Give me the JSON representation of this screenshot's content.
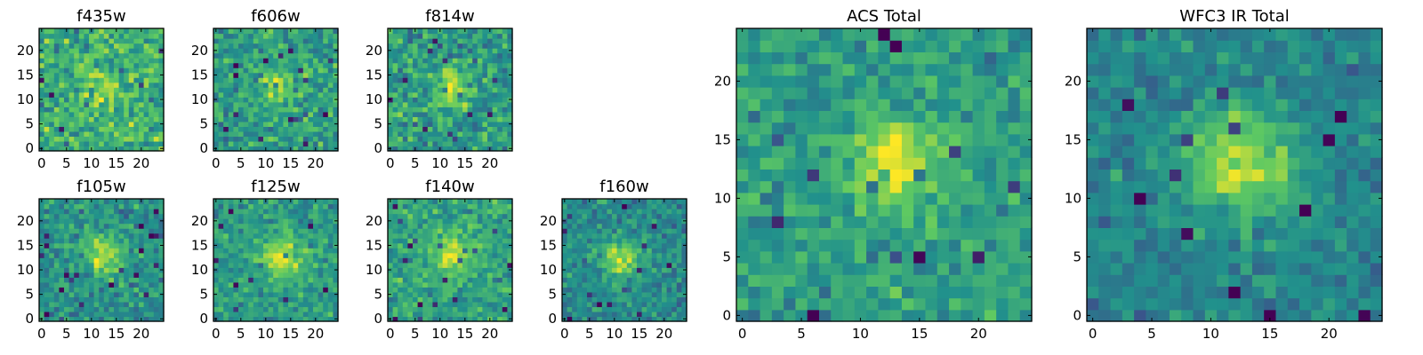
{
  "chart_data": {
    "type": "heatmap",
    "colormap": [
      "#440154",
      "#3b528b",
      "#21918c",
      "#5ec962",
      "#fde725"
    ],
    "grid": false,
    "panels": [
      {
        "title": "f435w",
        "xlim": [
          0,
          25
        ],
        "ylim": [
          0,
          25
        ],
        "xticks": [
          0,
          5,
          10,
          15,
          20
        ],
        "yticks": [
          0,
          5,
          10,
          15,
          20
        ],
        "pixels": 25,
        "peak": [
          12.5,
          12.5
        ],
        "peak_amp": 0.2,
        "peak_sigma": 3.0,
        "base": 0.62,
        "noise": 0.17,
        "seed": 11
      },
      {
        "title": "f606w",
        "xlim": [
          0,
          25
        ],
        "ylim": [
          0,
          25
        ],
        "xticks": [
          0,
          5,
          10,
          15,
          20
        ],
        "yticks": [
          0,
          5,
          10,
          15,
          20
        ],
        "pixels": 25,
        "peak": [
          13.0,
          12.5
        ],
        "peak_amp": 0.3,
        "peak_sigma": 2.6,
        "base": 0.55,
        "noise": 0.15,
        "seed": 23
      },
      {
        "title": "f814w",
        "xlim": [
          0,
          25
        ],
        "ylim": [
          0,
          25
        ],
        "xticks": [
          0,
          5,
          10,
          15,
          20
        ],
        "yticks": [
          0,
          5,
          10,
          15,
          20
        ],
        "pixels": 25,
        "peak": [
          12.5,
          12.5
        ],
        "peak_amp": 0.35,
        "peak_sigma": 2.6,
        "base": 0.55,
        "noise": 0.16,
        "seed": 37
      },
      {
        "title": "f105w",
        "xlim": [
          0,
          25
        ],
        "ylim": [
          0,
          25
        ],
        "xticks": [
          0,
          5,
          10,
          15,
          20
        ],
        "yticks": [
          0,
          5,
          10,
          15,
          20
        ],
        "pixels": 25,
        "peak": [
          12.5,
          13.0
        ],
        "peak_amp": 0.35,
        "peak_sigma": 3.0,
        "base": 0.5,
        "noise": 0.13,
        "seed": 41
      },
      {
        "title": "f125w",
        "xlim": [
          0,
          25
        ],
        "ylim": [
          0,
          25
        ],
        "xticks": [
          0,
          5,
          10,
          15,
          20
        ],
        "yticks": [
          0,
          5,
          10,
          15,
          20
        ],
        "pixels": 25,
        "peak": [
          13.0,
          12.5
        ],
        "peak_amp": 0.35,
        "peak_sigma": 3.0,
        "base": 0.55,
        "noise": 0.12,
        "seed": 53
      },
      {
        "title": "f140w",
        "xlim": [
          0,
          25
        ],
        "ylim": [
          0,
          25
        ],
        "xticks": [
          0,
          5,
          10,
          15,
          20
        ],
        "yticks": [
          0,
          5,
          10,
          15,
          20
        ],
        "pixels": 25,
        "peak": [
          12.5,
          13.0
        ],
        "peak_amp": 0.3,
        "peak_sigma": 3.2,
        "base": 0.58,
        "noise": 0.13,
        "seed": 67
      },
      {
        "title": "f160w",
        "xlim": [
          0,
          25
        ],
        "ylim": [
          0,
          25
        ],
        "xticks": [
          0,
          5,
          10,
          15,
          20
        ],
        "yticks": [
          0,
          5,
          10,
          15,
          20
        ],
        "pixels": 25,
        "peak": [
          11.5,
          12.5
        ],
        "peak_amp": 0.4,
        "peak_sigma": 2.6,
        "base": 0.48,
        "noise": 0.12,
        "seed": 79
      },
      {
        "title": "ACS Total",
        "xlim": [
          0,
          25
        ],
        "ylim": [
          0,
          25
        ],
        "xticks": [
          0,
          5,
          10,
          15,
          20
        ],
        "yticks": [
          0,
          5,
          10,
          15,
          20
        ],
        "pixels": 25,
        "peak": [
          13.0,
          13.0
        ],
        "peak_amp": 0.4,
        "peak_sigma": 2.6,
        "base": 0.55,
        "noise": 0.12,
        "seed": 97
      },
      {
        "title": "WFC3 IR Total",
        "xlim": [
          0,
          25
        ],
        "ylim": [
          0,
          25
        ],
        "xticks": [
          0,
          5,
          10,
          15,
          20
        ],
        "yticks": [
          0,
          5,
          10,
          15,
          20
        ],
        "pixels": 25,
        "peak": [
          12.5,
          13.0
        ],
        "peak_amp": 0.45,
        "peak_sigma": 3.2,
        "base": 0.45,
        "noise": 0.1,
        "seed": 113
      }
    ]
  }
}
